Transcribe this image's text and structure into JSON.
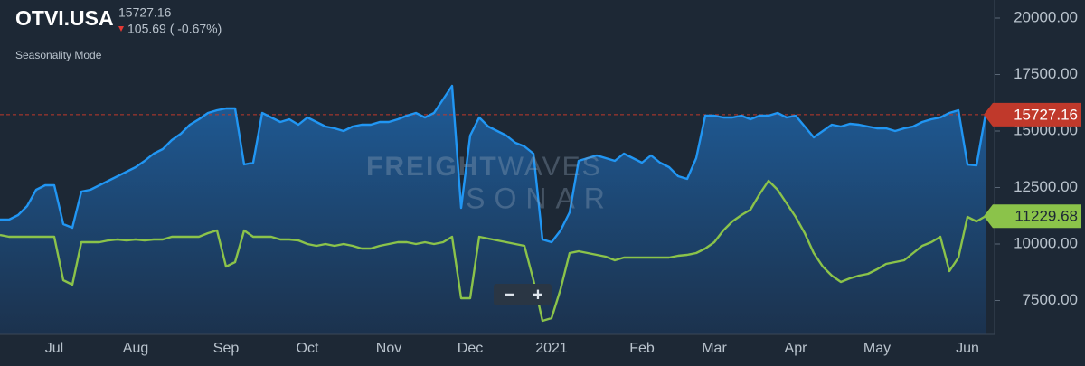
{
  "chart_data": {
    "type": "line",
    "title": "OTVI.USA",
    "price": "15727.16",
    "change": "105.69 ( -0.67%)",
    "mode": "Seasonality Mode",
    "watermark": {
      "brand_bold": "FREIGHT",
      "brand_light": "WAVES",
      "product": "SONAR"
    },
    "zoom_out": "−",
    "zoom_in": "+",
    "reference_line": {
      "value": 15727.16,
      "color": "#c0392b"
    },
    "categories": [
      null,
      null,
      null,
      null,
      null,
      null,
      "Jul",
      null,
      null,
      null,
      null,
      null,
      null,
      null,
      null,
      "Aug",
      null,
      null,
      null,
      null,
      null,
      null,
      null,
      null,
      null,
      "Sep",
      null,
      null,
      null,
      null,
      null,
      null,
      null,
      null,
      "Oct",
      null,
      null,
      null,
      null,
      null,
      null,
      null,
      null,
      "Nov",
      null,
      null,
      null,
      null,
      null,
      null,
      null,
      null,
      "Dec",
      null,
      null,
      null,
      null,
      null,
      null,
      null,
      null,
      "2021",
      null,
      null,
      null,
      null,
      null,
      null,
      null,
      null,
      null,
      "Feb",
      null,
      null,
      null,
      null,
      null,
      null,
      null,
      "Mar",
      null,
      null,
      null,
      null,
      null,
      null,
      null,
      null,
      "Apr",
      null,
      null,
      null,
      null,
      null,
      null,
      null,
      null,
      "May",
      null,
      null,
      null,
      null,
      null,
      null,
      null,
      null,
      null,
      "Jun",
      null,
      null
    ],
    "series": [
      {
        "color": "#2196f3",
        "area": true,
        "tag_color": "#c0392b",
        "values": [
          11080,
          11080,
          11280,
          11680,
          12400,
          12600,
          12600,
          10880,
          10720,
          12320,
          12400,
          12600,
          12800,
          13000,
          13200,
          13400,
          13680,
          14000,
          14200,
          14600,
          14880,
          15280,
          15520,
          15800,
          15920,
          16000,
          16000,
          13520,
          13600,
          15800,
          15600,
          15400,
          15520,
          15280,
          15600,
          15400,
          15200,
          15120,
          15000,
          15200,
          15280,
          15280,
          15400,
          15400,
          15520,
          15680,
          15800,
          15600,
          15800,
          16400,
          17000,
          11600,
          14800,
          15600,
          15200,
          15000,
          14800,
          14480,
          14320,
          14000,
          10200,
          10080,
          10600,
          11400,
          13680,
          13800,
          13920,
          13800,
          13680,
          14000,
          13800,
          13600,
          13920,
          13600,
          13400,
          13000,
          12880,
          13800,
          15680,
          15680,
          15600,
          15600,
          15680,
          15520,
          15680,
          15680,
          15800,
          15600,
          15680,
          15200,
          14720,
          15000,
          15280,
          15200,
          15320,
          15280,
          15200,
          15120,
          15120,
          15000,
          15120,
          15200,
          15400,
          15520,
          15600,
          15800,
          15920,
          13520,
          13480,
          15727.16
        ]
      },
      {
        "color": "#8bc34a",
        "area": false,
        "tag_color": "#8bc34a",
        "values": [
          10400,
          10320,
          10320,
          10320,
          10320,
          10320,
          10320,
          8400,
          8200,
          10080,
          10080,
          10080,
          10160,
          10200,
          10160,
          10200,
          10160,
          10200,
          10200,
          10320,
          10320,
          10320,
          10320,
          10480,
          10600,
          9000,
          9200,
          10600,
          10320,
          10320,
          10320,
          10200,
          10200,
          10160,
          10000,
          9920,
          10000,
          9920,
          10000,
          9920,
          9800,
          9800,
          9920,
          10000,
          10080,
          10080,
          10000,
          10080,
          10000,
          10080,
          10320,
          7600,
          7600,
          10320,
          10240,
          10160,
          10080,
          10000,
          9920,
          8400,
          6600,
          6720,
          8000,
          9600,
          9680,
          9600,
          9520,
          9440,
          9280,
          9400,
          9400,
          9400,
          9400,
          9400,
          9400,
          9480,
          9520,
          9600,
          9800,
          10080,
          10600,
          11000,
          11280,
          11520,
          12200,
          12800,
          12400,
          11800,
          11200,
          10480,
          9600,
          9000,
          8600,
          8320,
          8480,
          8600,
          8680,
          8880,
          9120,
          9200,
          9280,
          9600,
          9920,
          10080,
          10320,
          8800,
          9400,
          11200,
          11000,
          11229.68
        ]
      }
    ],
    "ylim": [
      6000,
      20800
    ],
    "yticks": [
      {
        "value": 7500,
        "label": "7500.00"
      },
      {
        "value": 10000,
        "label": "10000.00"
      },
      {
        "value": 12500,
        "label": "12500.00"
      },
      {
        "value": 15000,
        "label": "15000.00"
      },
      {
        "value": 17500,
        "label": "17500.00"
      },
      {
        "value": 20000,
        "label": "20000.00"
      }
    ],
    "grid": false
  }
}
